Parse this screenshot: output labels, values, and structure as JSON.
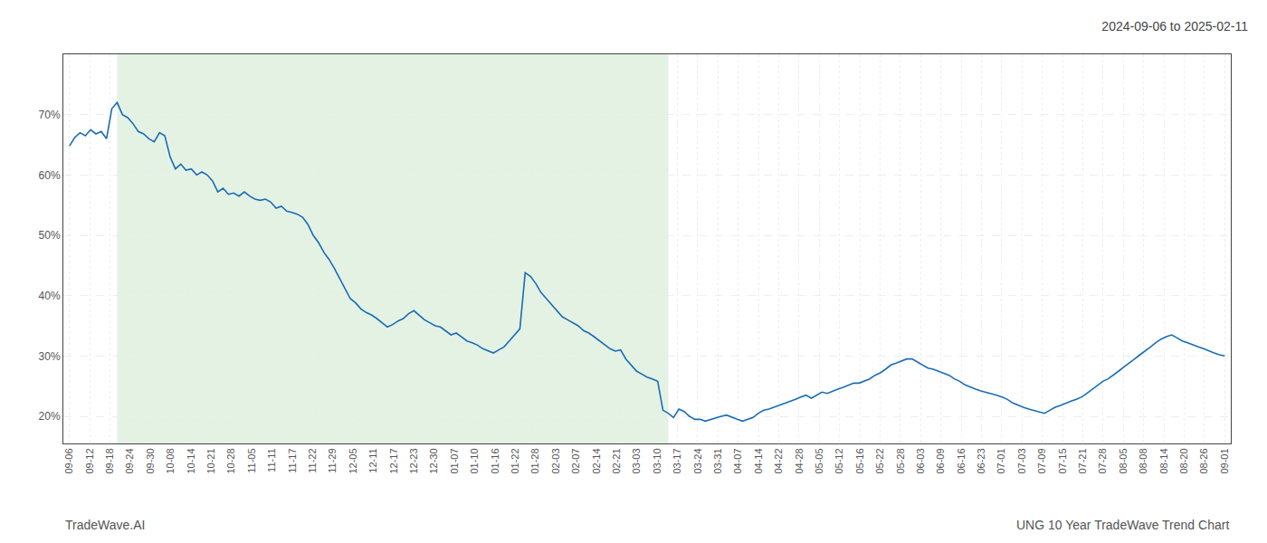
{
  "chart_data": {
    "type": "line",
    "title": "2024-09-06 to 2025-02-11",
    "annotations": [
      "TradeWave.AI",
      "UNG 10 Year TradeWave Trend Chart"
    ],
    "color": "#1a6cb5",
    "shade_color": "#cce8cc",
    "shade_points": [
      9,
      113
    ],
    "grid": true,
    "xlim": [
      -0.3,
      57.3
    ],
    "xticks": [
      {
        "value": 0,
        "label": "09-06"
      },
      {
        "value": 1,
        "label": "09-12"
      },
      {
        "value": 2,
        "label": "09-18"
      },
      {
        "value": 3,
        "label": "09-24"
      },
      {
        "value": 4,
        "label": "09-30"
      },
      {
        "value": 5,
        "label": "10-08"
      },
      {
        "value": 6,
        "label": "10-14"
      },
      {
        "value": 7,
        "label": "10-21"
      },
      {
        "value": 8,
        "label": "10-28"
      },
      {
        "value": 9,
        "label": "11-05"
      },
      {
        "value": 10,
        "label": "11-11"
      },
      {
        "value": 11,
        "label": "11-17"
      },
      {
        "value": 12,
        "label": "11-22"
      },
      {
        "value": 13,
        "label": "11-29"
      },
      {
        "value": 14,
        "label": "12-05"
      },
      {
        "value": 15,
        "label": "12-11"
      },
      {
        "value": 16,
        "label": "12-17"
      },
      {
        "value": 17,
        "label": "12-23"
      },
      {
        "value": 18,
        "label": "12-30"
      },
      {
        "value": 19,
        "label": "01-07"
      },
      {
        "value": 20,
        "label": "01-10"
      },
      {
        "value": 21,
        "label": "01-16"
      },
      {
        "value": 22,
        "label": "01-22"
      },
      {
        "value": 23,
        "label": "01-28"
      },
      {
        "value": 24,
        "label": "02-03"
      },
      {
        "value": 25,
        "label": "02-07"
      },
      {
        "value": 26,
        "label": "02-14"
      },
      {
        "value": 27,
        "label": "02-21"
      },
      {
        "value": 28,
        "label": "03-03"
      },
      {
        "value": 29,
        "label": "03-10"
      },
      {
        "value": 30,
        "label": "03-17"
      },
      {
        "value": 31,
        "label": "03-24"
      },
      {
        "value": 32,
        "label": "03-31"
      },
      {
        "value": 33,
        "label": "04-07"
      },
      {
        "value": 34,
        "label": "04-14"
      },
      {
        "value": 35,
        "label": "04-22"
      },
      {
        "value": 36,
        "label": "04-28"
      },
      {
        "value": 37,
        "label": "05-05"
      },
      {
        "value": 38,
        "label": "05-12"
      },
      {
        "value": 39,
        "label": "05-16"
      },
      {
        "value": 40,
        "label": "05-22"
      },
      {
        "value": 41,
        "label": "05-28"
      },
      {
        "value": 42,
        "label": "06-03"
      },
      {
        "value": 43,
        "label": "06-09"
      },
      {
        "value": 44,
        "label": "06-16"
      },
      {
        "value": 45,
        "label": "06-23"
      },
      {
        "value": 46,
        "label": "07-01"
      },
      {
        "value": 47,
        "label": "07-03"
      },
      {
        "value": 48,
        "label": "07-09"
      },
      {
        "value": 49,
        "label": "07-15"
      },
      {
        "value": 50,
        "label": "07-21"
      },
      {
        "value": 51,
        "label": "07-28"
      },
      {
        "value": 52,
        "label": "08-05"
      },
      {
        "value": 53,
        "label": "08-08"
      },
      {
        "value": 54,
        "label": "08-14"
      },
      {
        "value": 55,
        "label": "08-20"
      },
      {
        "value": 56,
        "label": "08-26"
      },
      {
        "value": 57,
        "label": "09-01"
      }
    ],
    "ylim": [
      0.155,
      0.8
    ],
    "yticks": [
      {
        "value": 0.2,
        "label": "20%"
      },
      {
        "value": 0.3,
        "label": "30%"
      },
      {
        "value": 0.4,
        "label": "40%"
      },
      {
        "value": 0.5,
        "label": "50%"
      },
      {
        "value": 0.6,
        "label": "60%"
      },
      {
        "value": 0.7,
        "label": "70%"
      }
    ],
    "values": [
      0.648,
      0.662,
      0.67,
      0.665,
      0.675,
      0.668,
      0.672,
      0.66,
      0.71,
      0.72,
      0.7,
      0.695,
      0.685,
      0.672,
      0.668,
      0.66,
      0.655,
      0.67,
      0.665,
      0.63,
      0.61,
      0.618,
      0.608,
      0.61,
      0.6,
      0.605,
      0.6,
      0.59,
      0.572,
      0.578,
      0.568,
      0.57,
      0.565,
      0.572,
      0.565,
      0.56,
      0.558,
      0.56,
      0.555,
      0.545,
      0.548,
      0.54,
      0.538,
      0.535,
      0.53,
      0.518,
      0.5,
      0.488,
      0.472,
      0.46,
      0.445,
      0.428,
      0.41,
      0.395,
      0.388,
      0.378,
      0.372,
      0.368,
      0.362,
      0.355,
      0.348,
      0.352,
      0.358,
      0.362,
      0.37,
      0.375,
      0.368,
      0.36,
      0.355,
      0.35,
      0.348,
      0.342,
      0.335,
      0.338,
      0.332,
      0.325,
      0.322,
      0.318,
      0.312,
      0.308,
      0.305,
      0.31,
      0.315,
      0.325,
      0.335,
      0.345,
      0.438,
      0.432,
      0.42,
      0.405,
      0.395,
      0.385,
      0.375,
      0.365,
      0.36,
      0.355,
      0.35,
      0.342,
      0.338,
      0.332,
      0.325,
      0.318,
      0.312,
      0.308,
      0.31,
      0.295,
      0.285,
      0.275,
      0.27,
      0.265,
      0.262,
      0.258,
      0.21,
      0.205,
      0.198,
      0.212,
      0.208,
      0.2,
      0.195,
      0.195,
      0.192,
      0.195,
      0.198,
      0.2,
      0.202,
      0.198,
      0.195,
      0.192,
      0.195,
      0.198,
      0.205,
      0.21,
      0.212,
      0.215,
      0.218,
      0.222,
      0.225,
      0.228,
      0.232,
      0.235,
      0.23,
      0.235,
      0.24,
      0.238,
      0.242,
      0.245,
      0.248,
      0.252,
      0.255,
      0.255,
      0.258,
      0.262,
      0.268,
      0.272,
      0.278,
      0.285,
      0.288,
      0.292,
      0.295,
      0.295,
      0.29,
      0.285,
      0.28,
      0.278,
      0.275,
      0.272,
      0.268,
      0.262,
      0.258,
      0.252,
      0.248,
      0.245,
      0.242,
      0.24,
      0.238,
      0.235,
      0.232,
      0.228,
      0.222,
      0.218,
      0.215,
      0.212,
      0.21,
      0.208,
      0.205,
      0.21,
      0.215,
      0.218,
      0.222,
      0.225,
      0.228,
      0.232,
      0.238,
      0.245,
      0.252,
      0.258,
      0.262,
      0.268,
      0.275,
      0.282,
      0.288,
      0.295,
      0.302,
      0.308,
      0.315,
      0.322,
      0.328,
      0.332,
      0.335,
      0.33,
      0.325,
      0.322,
      0.318,
      0.315,
      0.312,
      0.308,
      0.305,
      0.302,
      0.3
    ]
  }
}
